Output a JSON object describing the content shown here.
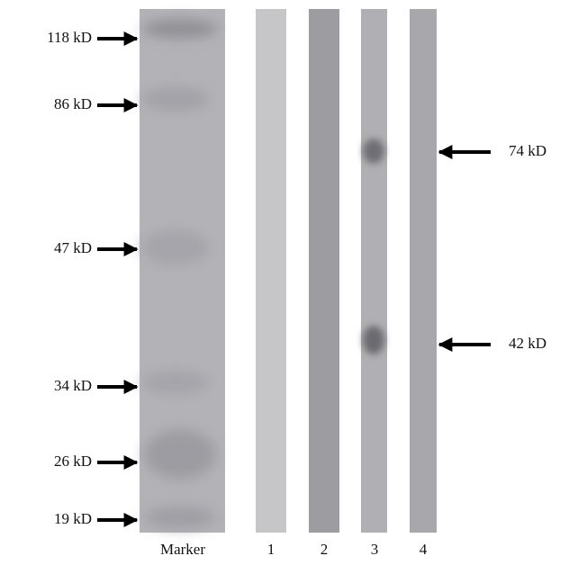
{
  "marker_labels": [
    "118 kD",
    "86 kD",
    "47 kD",
    "34 kD",
    "26 kD",
    "19 kD"
  ],
  "band_labels": [
    "74 kD",
    "42 kD"
  ],
  "lane_labels": [
    "Marker",
    "1",
    "2",
    "3",
    "4"
  ]
}
